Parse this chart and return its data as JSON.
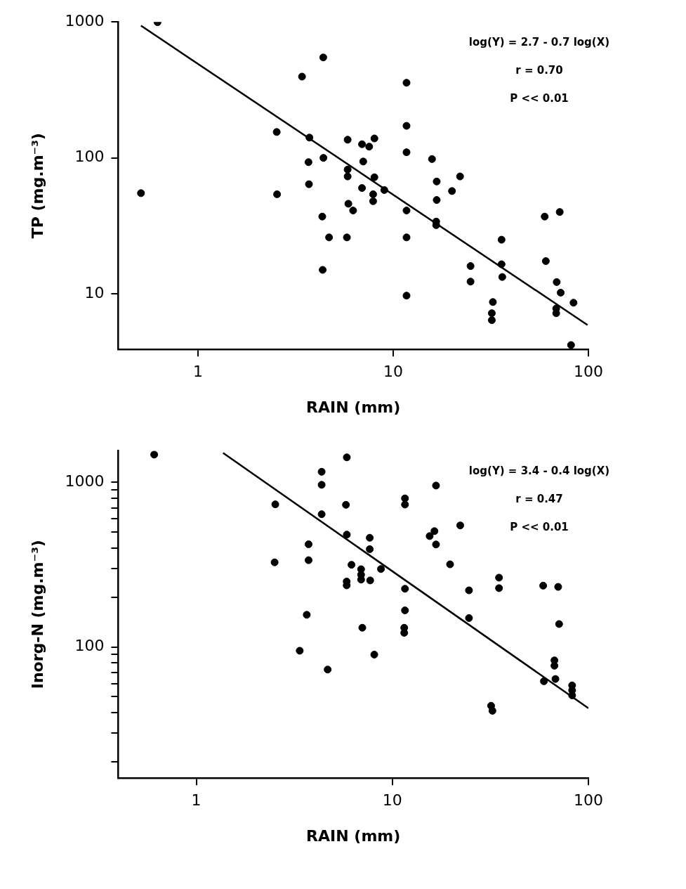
{
  "chart_data": [
    {
      "type": "scatter",
      "xlabel": "RAIN (mm)",
      "ylabel": "TP (mg.m⁻³)",
      "log": "xy",
      "grid": false,
      "marker": "circle",
      "xlim": [
        0.39,
        100
      ],
      "ylim": [
        3.9,
        1000
      ],
      "xticks": [
        1,
        10,
        100
      ],
      "yticks": [
        10,
        100,
        1000
      ],
      "annotations": [
        "log(Y) = 2.7 - 0.7 log(X)",
        "r = 0.70",
        "P << 0.01"
      ],
      "series": [
        {
          "color": "#000000",
          "x": [
            0.62,
            0.51,
            4.38,
            3.41,
            2.53,
            2.54,
            3.72,
            3.68,
            3.7,
            4.39,
            4.33,
            4.69,
            4.35,
            5.79,
            5.84,
            5.84,
            5.84,
            5.89,
            6.23,
            6.92,
            7.53,
            8.01,
            7.02,
            8.01,
            6.92,
            7.89,
            7.89,
            9.0,
            11.7,
            11.7,
            11.7,
            11.7,
            11.7,
            11.7,
            15.8,
            16.7,
            16.7,
            16.6,
            16.6,
            20.0,
            22.0,
            24.9,
            24.9,
            32.4,
            32.0,
            32.0,
            35.9,
            35.9,
            36.2,
            59.7,
            71.3,
            60.5,
            68.8,
            72.1,
            68.4,
            68.4,
            83.9,
            81.5
          ],
          "values": [
            995,
            55,
            548,
            396,
            155,
            54,
            141,
            93,
            64,
            100,
            37,
            26,
            15,
            26,
            136,
            82,
            73,
            46,
            41,
            126,
            121,
            139,
            94,
            72,
            60,
            54,
            48,
            58,
            357,
            172,
            110,
            41,
            26,
            9.7,
            98,
            67,
            49,
            34,
            32,
            57,
            73,
            16,
            12.3,
            8.7,
            7.2,
            6.4,
            25,
            16.5,
            13.3,
            37,
            40,
            17.4,
            12.2,
            10.2,
            7.8,
            7.2,
            8.6,
            4.2
          ]
        },
        {
          "type": "line",
          "marker": "none",
          "color": "#000000",
          "line_style": "solid",
          "x": [
            0.51,
            99
          ],
          "values": [
            938,
            5.9
          ]
        }
      ]
    },
    {
      "type": "scatter",
      "xlabel": "RAIN (mm)",
      "ylabel": "Inorg-N (mg.m⁻³)",
      "log": "xy",
      "grid": false,
      "marker": "circle",
      "xlim": [
        0.4,
        100
      ],
      "ylim": [
        16,
        1560
      ],
      "xticks": [
        1,
        10,
        100
      ],
      "yticks": [
        {
          "value": 20,
          "label": null
        },
        {
          "value": 30,
          "label": null
        },
        {
          "value": 40,
          "label": null
        },
        {
          "value": 50,
          "label": null
        },
        {
          "value": 60,
          "label": null
        },
        {
          "value": 70,
          "label": null
        },
        {
          "value": 80,
          "label": null
        },
        {
          "value": 90,
          "label": null
        },
        100,
        {
          "value": 200,
          "label": null
        },
        {
          "value": 300,
          "label": null
        },
        {
          "value": 400,
          "label": null
        },
        {
          "value": 500,
          "label": null
        },
        {
          "value": 600,
          "label": null
        },
        {
          "value": 700,
          "label": null
        },
        {
          "value": 800,
          "label": null
        },
        {
          "value": 900,
          "label": null
        },
        1000
      ],
      "annotations": [
        "log(Y) = 3.4 - 0.4 log(X)",
        "r = 0.47",
        "P << 0.01"
      ],
      "series": [
        {
          "color": "#000000",
          "x": [
            0.61,
            2.53,
            2.51,
            4.36,
            4.36,
            4.36,
            5.86,
            5.8,
            5.86,
            3.74,
            3.74,
            6.19,
            7.67,
            7.67,
            8.75,
            5.85,
            5.85,
            6.93,
            6.93,
            6.93,
            7.71,
            3.66,
            7.03,
            3.37,
            8.09,
            4.68,
            16.7,
            11.6,
            11.6,
            11.6,
            11.6,
            11.5,
            11.5,
            16.4,
            15.5,
            16.7,
            22.2,
            19.7,
            24.6,
            24.6,
            35.0,
            35.0,
            31.9,
            32.4,
            58.8,
            70.1,
            70.9,
            67.1,
            67.1,
            59.3,
            67.9,
            82.6,
            82.6,
            82.6
          ],
          "values": [
            1475,
            736,
            327,
            1160,
            967,
            641,
            1420,
            731,
            482,
            421,
            337,
            316,
            461,
            393,
            298,
            250,
            237,
            297,
            275,
            257,
            254,
            157,
            131,
            95,
            90,
            73,
            957,
            800,
            734,
            226,
            167,
            131,
            122,
            506,
            472,
            420,
            548,
            318,
            221,
            150,
            264,
            228,
            44,
            41,
            236,
            232,
            138,
            83,
            77,
            62,
            64,
            58.5,
            54.6,
            50.9
          ]
        },
        {
          "type": "line",
          "marker": "none",
          "color": "#000000",
          "line_style": "solid",
          "x": [
            1.37,
            100
          ],
          "values": [
            1510,
            42.5
          ]
        }
      ]
    }
  ]
}
